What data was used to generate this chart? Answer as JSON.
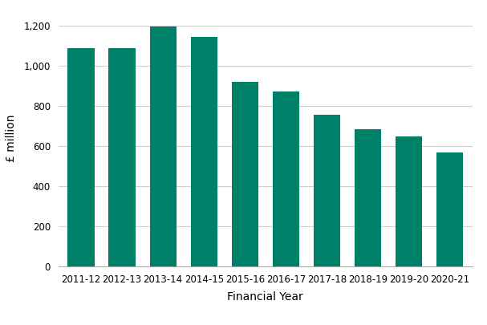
{
  "categories": [
    "2011-12",
    "2012-13",
    "2013-14",
    "2014-15",
    "2015-16",
    "2016-17",
    "2017-18",
    "2018-19",
    "2019-20",
    "2020-21"
  ],
  "values": [
    1090,
    1090,
    1195,
    1145,
    920,
    873,
    758,
    685,
    648,
    567
  ],
  "bar_color": "#008068",
  "xlabel": "Financial Year",
  "ylabel": "£ million",
  "ylim": [
    0,
    1280
  ],
  "yticks": [
    0,
    200,
    400,
    600,
    800,
    1000,
    1200
  ],
  "background_color": "#ffffff",
  "grid_color": "#d0d0d0",
  "bar_width": 0.65
}
